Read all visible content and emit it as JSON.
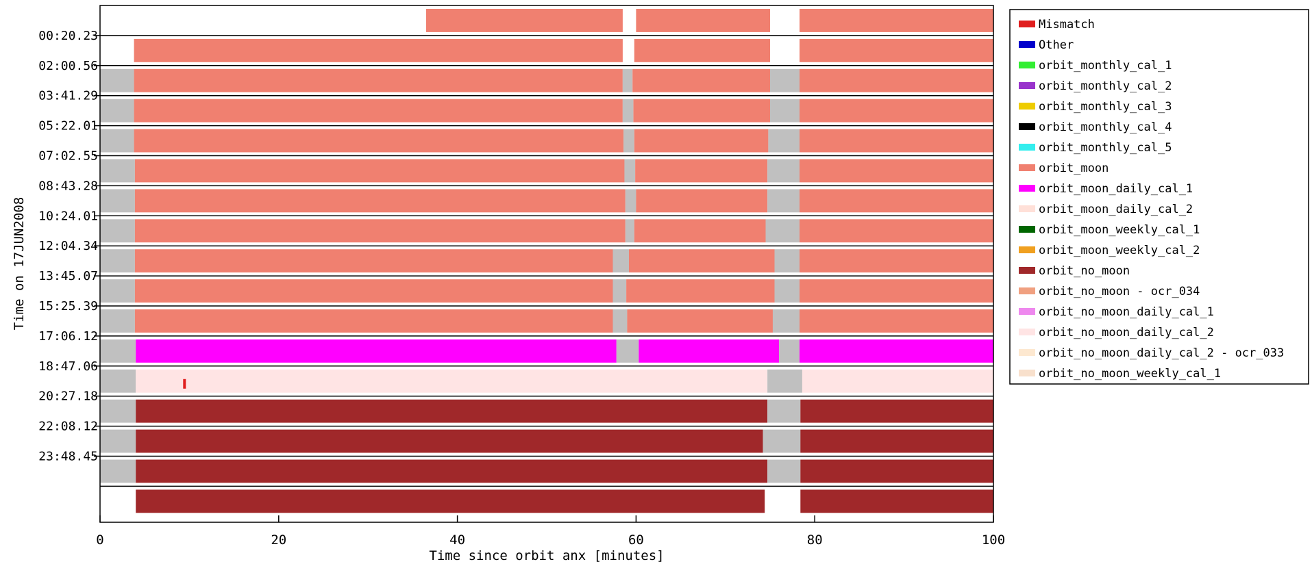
{
  "chart_data": {
    "type": "bar",
    "orientation": "horizontal-timeline",
    "xlabel": "Time since orbit anx [minutes]",
    "ylabel": "Time on 17JUN2008",
    "xlim": [
      0,
      100
    ],
    "x_ticks": [
      0,
      20,
      40,
      60,
      80,
      100
    ],
    "y_ticks": [
      "00:20.23",
      "02:00.56",
      "03:41.29",
      "05:22.01",
      "07:02.55",
      "08:43.28",
      "10:24.01",
      "12:04.34",
      "13:45.07",
      "15:25.39",
      "17:06.12",
      "18:47.06",
      "20:27.18",
      "22:08.12",
      "23:48.45"
    ],
    "legend_position": "right",
    "legend": [
      {
        "label": "Mismatch",
        "color": "#e01e1e"
      },
      {
        "label": "Other",
        "color": "#0000cc"
      },
      {
        "label": "orbit_monthly_cal_1",
        "color": "#33ee33"
      },
      {
        "label": "orbit_monthly_cal_2",
        "color": "#9933cc"
      },
      {
        "label": "orbit_monthly_cal_3",
        "color": "#eecc00"
      },
      {
        "label": "orbit_monthly_cal_4",
        "color": "#000000"
      },
      {
        "label": "orbit_monthly_cal_5",
        "color": "#33eeee"
      },
      {
        "label": "orbit_moon",
        "color": "#f08070"
      },
      {
        "label": "orbit_moon_daily_cal_1",
        "color": "#ff00ff"
      },
      {
        "label": "orbit_moon_daily_cal_2",
        "color": "#ffe0d8"
      },
      {
        "label": "orbit_moon_weekly_cal_1",
        "color": "#006600"
      },
      {
        "label": "orbit_moon_weekly_cal_2",
        "color": "#f0a020"
      },
      {
        "label": "orbit_no_moon",
        "color": "#a0282a"
      },
      {
        "label": "orbit_no_moon - ocr_034",
        "color": "#f0a080"
      },
      {
        "label": "orbit_no_moon_daily_cal_1",
        "color": "#ee88ee"
      },
      {
        "label": "orbit_no_moon_daily_cal_2",
        "color": "#ffe4e4"
      },
      {
        "label": "orbit_no_moon_daily_cal_2 - ocr_033",
        "color": "#fde8d0"
      },
      {
        "label": "orbit_no_moon_weekly_cal_1",
        "color": "#f8e0cc"
      }
    ],
    "gap_color": "#c0c0c0",
    "orbits": [
      {
        "segments": [
          {
            "start": 3.8,
            "end": 36.5,
            "category": "none"
          },
          {
            "start": 36.5,
            "end": 58.5,
            "category": "orbit_moon"
          },
          {
            "start": 60,
            "end": 75,
            "category": "orbit_moon"
          },
          {
            "start": 78.3,
            "end": 100,
            "category": "orbit_moon"
          }
        ]
      },
      {
        "segments": [
          {
            "start": 3.8,
            "end": 58.5,
            "category": "orbit_moon"
          },
          {
            "start": 59.8,
            "end": 75,
            "category": "orbit_moon"
          },
          {
            "start": 78.3,
            "end": 100,
            "category": "orbit_moon"
          }
        ]
      },
      {
        "segments": [
          {
            "start": 0,
            "end": 3.8,
            "category": "gap"
          },
          {
            "start": 3.8,
            "end": 58.5,
            "category": "orbit_moon"
          },
          {
            "start": 58.5,
            "end": 59.6,
            "category": "gap"
          },
          {
            "start": 59.6,
            "end": 75,
            "category": "orbit_moon"
          },
          {
            "start": 75,
            "end": 78.3,
            "category": "gap"
          },
          {
            "start": 78.3,
            "end": 100,
            "category": "orbit_moon"
          }
        ]
      },
      {
        "segments": [
          {
            "start": 0,
            "end": 3.8,
            "category": "gap"
          },
          {
            "start": 3.8,
            "end": 58.5,
            "category": "orbit_moon"
          },
          {
            "start": 58.5,
            "end": 59.7,
            "category": "gap"
          },
          {
            "start": 59.7,
            "end": 75,
            "category": "orbit_moon"
          },
          {
            "start": 75,
            "end": 78.3,
            "category": "gap"
          },
          {
            "start": 78.3,
            "end": 100,
            "category": "orbit_moon"
          }
        ]
      },
      {
        "segments": [
          {
            "start": 0,
            "end": 3.8,
            "category": "gap"
          },
          {
            "start": 3.8,
            "end": 58.6,
            "category": "orbit_moon"
          },
          {
            "start": 58.6,
            "end": 59.8,
            "category": "gap"
          },
          {
            "start": 59.8,
            "end": 74.8,
            "category": "orbit_moon"
          },
          {
            "start": 74.8,
            "end": 78.3,
            "category": "gap"
          },
          {
            "start": 78.3,
            "end": 100,
            "category": "orbit_moon"
          }
        ]
      },
      {
        "segments": [
          {
            "start": 0,
            "end": 3.9,
            "category": "gap"
          },
          {
            "start": 3.9,
            "end": 58.7,
            "category": "orbit_moon"
          },
          {
            "start": 58.7,
            "end": 59.9,
            "category": "gap"
          },
          {
            "start": 59.9,
            "end": 74.7,
            "category": "orbit_moon"
          },
          {
            "start": 74.7,
            "end": 78.3,
            "category": "gap"
          },
          {
            "start": 78.3,
            "end": 100,
            "category": "orbit_moon"
          }
        ]
      },
      {
        "segments": [
          {
            "start": 0,
            "end": 3.9,
            "category": "gap"
          },
          {
            "start": 3.9,
            "end": 58.8,
            "category": "orbit_moon"
          },
          {
            "start": 58.8,
            "end": 60,
            "category": "gap"
          },
          {
            "start": 60,
            "end": 74.7,
            "category": "orbit_moon"
          },
          {
            "start": 74.7,
            "end": 78.3,
            "category": "gap"
          },
          {
            "start": 78.3,
            "end": 100,
            "category": "orbit_moon"
          }
        ]
      },
      {
        "segments": [
          {
            "start": 0,
            "end": 3.9,
            "category": "gap"
          },
          {
            "start": 3.9,
            "end": 58.8,
            "category": "orbit_moon"
          },
          {
            "start": 58.8,
            "end": 59.8,
            "category": "gap"
          },
          {
            "start": 59.8,
            "end": 74.5,
            "category": "orbit_moon"
          },
          {
            "start": 74.5,
            "end": 78.3,
            "category": "gap"
          },
          {
            "start": 78.3,
            "end": 100,
            "category": "orbit_moon"
          }
        ]
      },
      {
        "segments": [
          {
            "start": 0,
            "end": 3.9,
            "category": "gap"
          },
          {
            "start": 3.9,
            "end": 57.4,
            "category": "orbit_moon"
          },
          {
            "start": 57.4,
            "end": 59.2,
            "category": "gap"
          },
          {
            "start": 59.2,
            "end": 75.5,
            "category": "orbit_moon"
          },
          {
            "start": 75.5,
            "end": 78.3,
            "category": "gap"
          },
          {
            "start": 78.3,
            "end": 100,
            "category": "orbit_moon"
          }
        ]
      },
      {
        "segments": [
          {
            "start": 0,
            "end": 3.9,
            "category": "gap"
          },
          {
            "start": 3.9,
            "end": 57.4,
            "category": "orbit_moon"
          },
          {
            "start": 57.4,
            "end": 58.9,
            "category": "gap"
          },
          {
            "start": 58.9,
            "end": 75.5,
            "category": "orbit_moon"
          },
          {
            "start": 75.5,
            "end": 78.3,
            "category": "gap"
          },
          {
            "start": 78.3,
            "end": 100,
            "category": "orbit_moon"
          }
        ]
      },
      {
        "segments": [
          {
            "start": 0,
            "end": 3.9,
            "category": "gap"
          },
          {
            "start": 3.9,
            "end": 57.4,
            "category": "orbit_moon"
          },
          {
            "start": 57.4,
            "end": 59,
            "category": "gap"
          },
          {
            "start": 59,
            "end": 75.3,
            "category": "orbit_moon"
          },
          {
            "start": 75.3,
            "end": 78.3,
            "category": "gap"
          },
          {
            "start": 78.3,
            "end": 100,
            "category": "orbit_moon"
          }
        ]
      },
      {
        "segments": [
          {
            "start": 0,
            "end": 4,
            "category": "gap"
          },
          {
            "start": 4,
            "end": 57.8,
            "category": "orbit_moon_daily_cal_1"
          },
          {
            "start": 57.8,
            "end": 60.3,
            "category": "gap"
          },
          {
            "start": 60.3,
            "end": 76,
            "category": "orbit_moon_daily_cal_1"
          },
          {
            "start": 76,
            "end": 78.3,
            "category": "gap"
          },
          {
            "start": 78.3,
            "end": 100,
            "category": "orbit_moon_daily_cal_1"
          }
        ]
      },
      {
        "segments": [
          {
            "start": 0,
            "end": 4,
            "category": "gap"
          },
          {
            "start": 4,
            "end": 74.7,
            "category": "orbit_no_moon_daily_cal_2"
          },
          {
            "start": 74.7,
            "end": 78.6,
            "category": "gap"
          },
          {
            "start": 78.6,
            "end": 100,
            "category": "orbit_no_moon_daily_cal_2"
          }
        ]
      },
      {
        "segments": [
          {
            "start": 0,
            "end": 4,
            "category": "gap"
          },
          {
            "start": 4,
            "end": 74.7,
            "category": "orbit_no_moon"
          },
          {
            "start": 74.7,
            "end": 78.4,
            "category": "gap"
          },
          {
            "start": 78.4,
            "end": 100,
            "category": "orbit_no_moon"
          }
        ]
      },
      {
        "segments": [
          {
            "start": 0,
            "end": 4,
            "category": "gap"
          },
          {
            "start": 4,
            "end": 74.2,
            "category": "orbit_no_moon"
          },
          {
            "start": 74.2,
            "end": 78.4,
            "category": "gap"
          },
          {
            "start": 78.4,
            "end": 100,
            "category": "orbit_no_moon"
          }
        ]
      },
      {
        "segments": [
          {
            "start": 0,
            "end": 4,
            "category": "gap"
          },
          {
            "start": 4,
            "end": 74.7,
            "category": "orbit_no_moon"
          },
          {
            "start": 74.7,
            "end": 78.4,
            "category": "gap"
          },
          {
            "start": 78.4,
            "end": 100,
            "category": "orbit_no_moon"
          }
        ]
      },
      {
        "segments": [
          {
            "start": 4,
            "end": 74.4,
            "category": "orbit_no_moon"
          },
          {
            "start": 78.4,
            "end": 100,
            "category": "orbit_no_moon"
          }
        ]
      }
    ],
    "mismatch_markers": [
      {
        "orbit_index": 12,
        "x": 9.3
      }
    ]
  }
}
